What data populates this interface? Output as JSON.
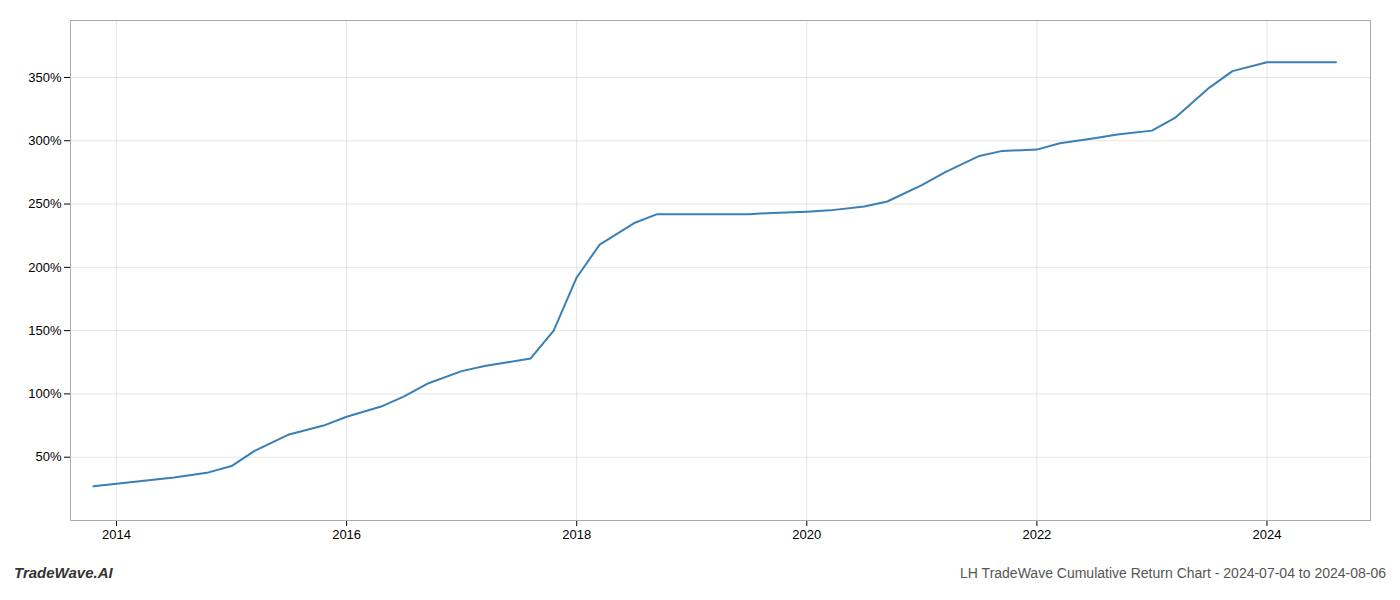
{
  "chart_data": {
    "type": "line",
    "title": "LH TradeWave Cumulative Return Chart - 2024-07-04 to 2024-08-06",
    "annotations": [
      "TradeWave.AI"
    ],
    "x": [
      2013.8,
      2014.0,
      2014.1,
      2014.3,
      2014.5,
      2014.8,
      2015.0,
      2015.2,
      2015.5,
      2015.8,
      2016.0,
      2016.3,
      2016.5,
      2016.7,
      2017.0,
      2017.2,
      2017.4,
      2017.6,
      2017.8,
      2018.0,
      2018.2,
      2018.5,
      2018.7,
      2019.0,
      2019.2,
      2019.5,
      2019.7,
      2020.0,
      2020.2,
      2020.5,
      2020.7,
      2021.0,
      2021.2,
      2021.5,
      2021.7,
      2022.0,
      2022.2,
      2022.5,
      2022.7,
      2023.0,
      2023.2,
      2023.5,
      2023.7,
      2024.0,
      2024.3,
      2024.6
    ],
    "values": [
      27,
      29,
      30,
      32,
      34,
      38,
      43,
      55,
      68,
      75,
      82,
      90,
      98,
      108,
      118,
      122,
      125,
      128,
      150,
      192,
      218,
      235,
      242,
      242,
      242,
      242,
      243,
      244,
      245,
      248,
      252,
      265,
      275,
      288,
      292,
      293,
      298,
      302,
      305,
      308,
      318,
      342,
      355,
      362,
      362,
      362
    ],
    "color": "#3a7fb5",
    "xlim": [
      2013.6,
      2024.9
    ],
    "xticks": [
      2014,
      2016,
      2018,
      2020,
      2022,
      2024
    ],
    "ylim": [
      0,
      395
    ],
    "yticks": [
      {
        "value": 50,
        "label": "50%"
      },
      {
        "value": 100,
        "label": "100%"
      },
      {
        "value": 150,
        "label": "150%"
      },
      {
        "value": 200,
        "label": "200%"
      },
      {
        "value": 250,
        "label": "250%"
      },
      {
        "value": 300,
        "label": "300%"
      },
      {
        "value": 350,
        "label": "350%"
      }
    ],
    "grid": true
  }
}
